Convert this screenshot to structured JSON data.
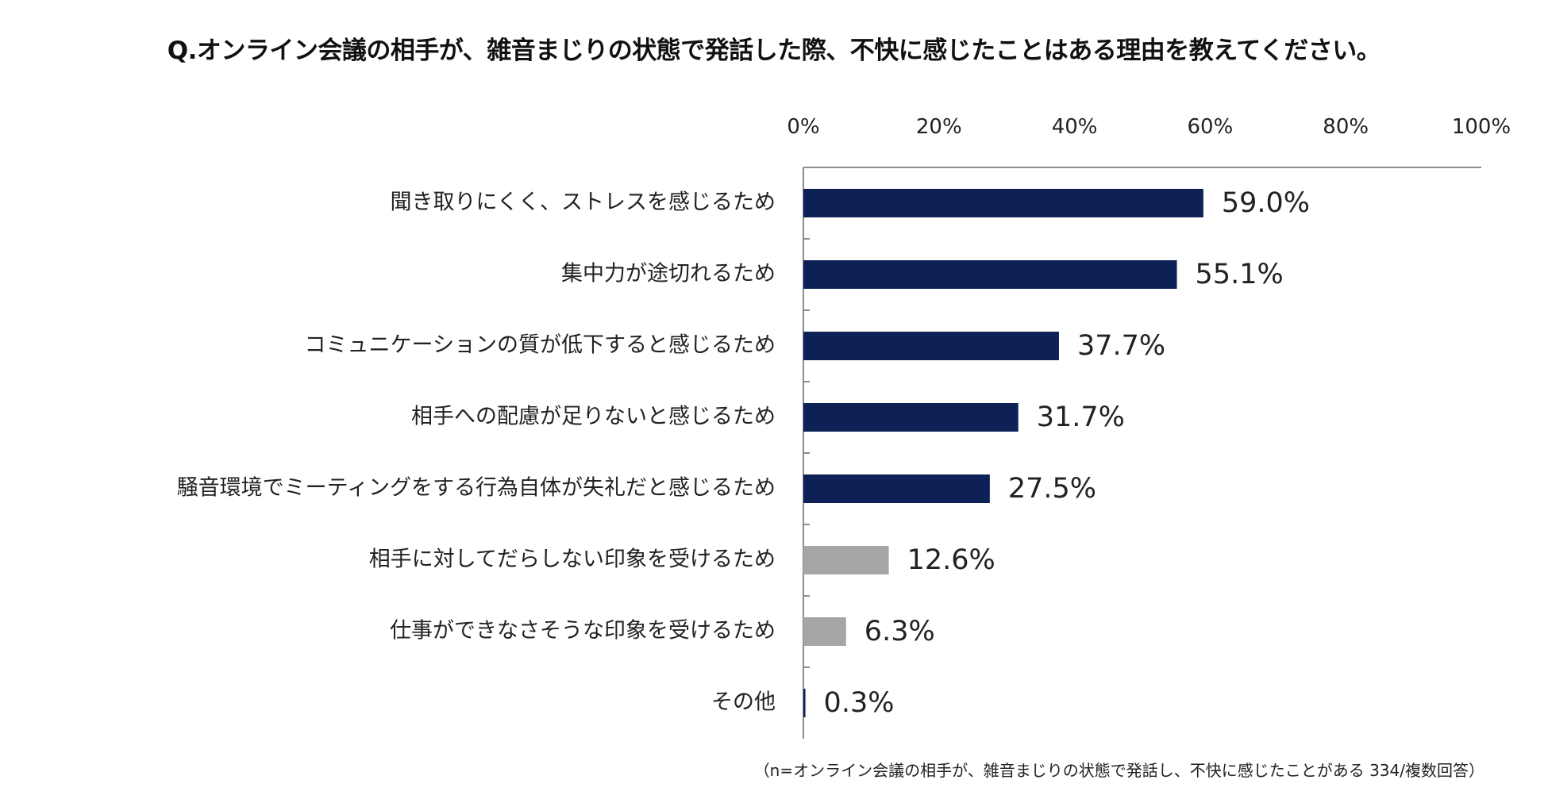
{
  "chart_data": {
    "type": "bar",
    "orientation": "horizontal",
    "title": "Q.オンライン会議の相手が、雑音まじりの状態で発話した際、不快に感じたことはある理由を教えてください。",
    "footnote": "（n=オンライン会議の相手が、雑音まじりの状態で発話し、不快に感じたことがある 334/複数回答）",
    "xlim": [
      0,
      100
    ],
    "x_ticks": [
      "0%",
      "20%",
      "40%",
      "60%",
      "80%",
      "100%"
    ],
    "grid": false,
    "legend": "none",
    "categories": [
      "聞き取りにくく、ストレスを感じるため",
      "集中力が途切れるため",
      "コミュニケーションの質が低下すると感じるため",
      "相手への配慮が足りないと感じるため",
      "騒音環境でミーティングをする行為自体が失礼だと感じるため",
      "相手に対してだらしない印象を受けるため",
      "仕事ができなさそうな印象を受けるため",
      "その他"
    ],
    "values": [
      59.0,
      55.1,
      37.7,
      31.7,
      27.5,
      12.6,
      6.3,
      0.3
    ],
    "value_labels": [
      "59.0%",
      "55.1%",
      "37.7%",
      "31.7%",
      "27.5%",
      "12.6%",
      "6.3%",
      "0.3%"
    ],
    "bar_colors": [
      "#0d2157",
      "#0d2157",
      "#0d2157",
      "#0d2157",
      "#0d2157",
      "#a6a6a6",
      "#a6a6a6",
      "#0d2157"
    ]
  }
}
